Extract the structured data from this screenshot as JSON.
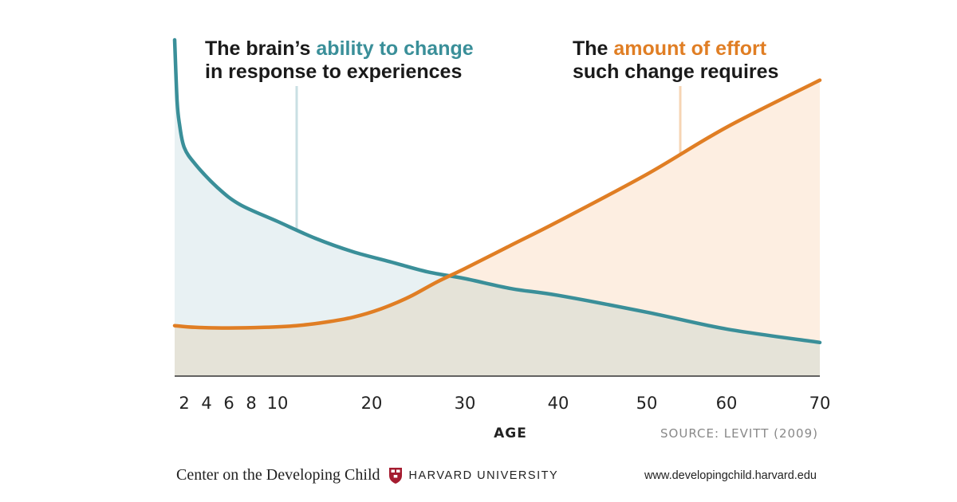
{
  "chart_data": {
    "type": "line",
    "xlabel": "AGE",
    "x_ticks": [
      2,
      4,
      6,
      8,
      10,
      20,
      30,
      40,
      50,
      60,
      70
    ],
    "xlim": [
      0,
      70
    ],
    "source": "SOURCE: LEVITT (2009)",
    "grid": false,
    "series": [
      {
        "name": "The brain's ability to change in response to experiences",
        "color": "#3a8f99",
        "fill": "#e8f1f3",
        "x": [
          0,
          0.5,
          1,
          2,
          3,
          5,
          7,
          10,
          14,
          18,
          22,
          26,
          30,
          35,
          40,
          50,
          60,
          70
        ],
        "y": [
          100,
          82,
          75,
          68,
          63,
          56,
          51,
          46,
          41,
          37,
          34,
          31,
          29,
          26,
          24,
          19,
          14,
          10
        ]
      },
      {
        "name": "The amount of effort such change requires",
        "color": "#e07e24",
        "fill": "#fdeee1",
        "x": [
          0,
          3,
          6,
          9,
          12,
          15,
          18,
          21,
          24,
          27,
          30,
          35,
          40,
          50,
          60,
          70
        ],
        "y": [
          15,
          14.5,
          14.3,
          14.5,
          15,
          16,
          17.5,
          20,
          23.5,
          28,
          32,
          39,
          46,
          60,
          74,
          88
        ]
      }
    ]
  },
  "annotations": {
    "ability": {
      "prefix": "The brain’s ",
      "highlight": "ability to change",
      "line2": "in response to experiences"
    },
    "effort": {
      "prefix": "The ",
      "highlight": "amount of effort",
      "line2": "such change requires"
    }
  },
  "footer": {
    "org": "Center on the Developing Child",
    "university": "HARVARD UNIVERSITY",
    "url": "www.developingchild.harvard.edu"
  }
}
